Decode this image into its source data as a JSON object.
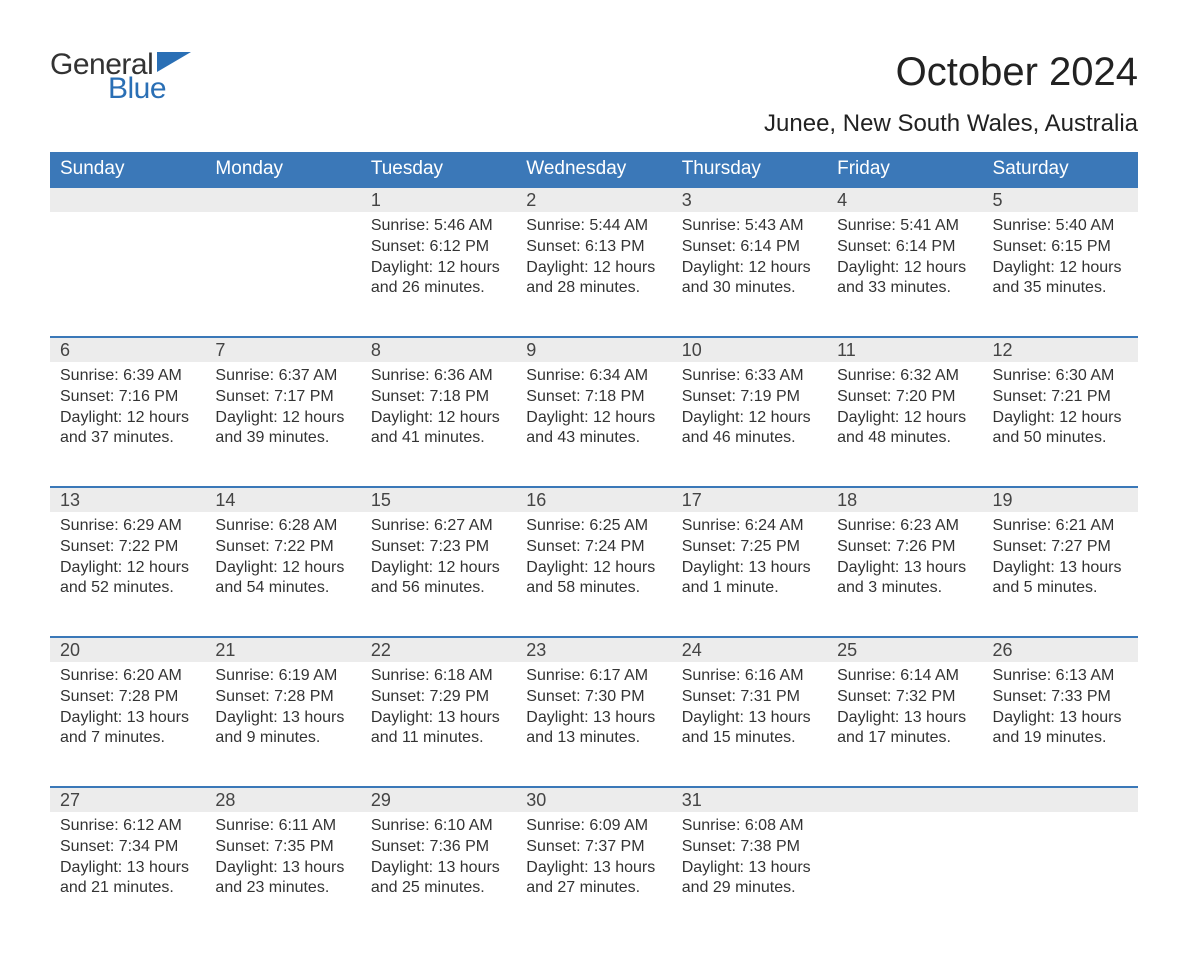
{
  "brand": {
    "word1": "General",
    "word2": "Blue"
  },
  "title": "October 2024",
  "subtitle": "Junee, New South Wales, Australia",
  "colors": {
    "header_bg": "#3b78b8",
    "header_text": "#ffffff",
    "daynum_bg": "#ececec",
    "daynum_border": "#3b78b8",
    "body_text": "#333333",
    "logo_blue": "#2a6fb5",
    "page_bg": "#ffffff"
  },
  "typography": {
    "title_fontsize": 40,
    "subtitle_fontsize": 24,
    "th_fontsize": 19,
    "daynum_fontsize": 18,
    "body_fontsize": 16
  },
  "layout": {
    "columns": 7,
    "weeks": 5,
    "first_day_column_index": 2
  },
  "weekdays": [
    "Sunday",
    "Monday",
    "Tuesday",
    "Wednesday",
    "Thursday",
    "Friday",
    "Saturday"
  ],
  "days": [
    {
      "n": 1,
      "sunrise": "5:46 AM",
      "sunset": "6:12 PM",
      "daylight": "12 hours and 26 minutes."
    },
    {
      "n": 2,
      "sunrise": "5:44 AM",
      "sunset": "6:13 PM",
      "daylight": "12 hours and 28 minutes."
    },
    {
      "n": 3,
      "sunrise": "5:43 AM",
      "sunset": "6:14 PM",
      "daylight": "12 hours and 30 minutes."
    },
    {
      "n": 4,
      "sunrise": "5:41 AM",
      "sunset": "6:14 PM",
      "daylight": "12 hours and 33 minutes."
    },
    {
      "n": 5,
      "sunrise": "5:40 AM",
      "sunset": "6:15 PM",
      "daylight": "12 hours and 35 minutes."
    },
    {
      "n": 6,
      "sunrise": "6:39 AM",
      "sunset": "7:16 PM",
      "daylight": "12 hours and 37 minutes."
    },
    {
      "n": 7,
      "sunrise": "6:37 AM",
      "sunset": "7:17 PM",
      "daylight": "12 hours and 39 minutes."
    },
    {
      "n": 8,
      "sunrise": "6:36 AM",
      "sunset": "7:18 PM",
      "daylight": "12 hours and 41 minutes."
    },
    {
      "n": 9,
      "sunrise": "6:34 AM",
      "sunset": "7:18 PM",
      "daylight": "12 hours and 43 minutes."
    },
    {
      "n": 10,
      "sunrise": "6:33 AM",
      "sunset": "7:19 PM",
      "daylight": "12 hours and 46 minutes."
    },
    {
      "n": 11,
      "sunrise": "6:32 AM",
      "sunset": "7:20 PM",
      "daylight": "12 hours and 48 minutes."
    },
    {
      "n": 12,
      "sunrise": "6:30 AM",
      "sunset": "7:21 PM",
      "daylight": "12 hours and 50 minutes."
    },
    {
      "n": 13,
      "sunrise": "6:29 AM",
      "sunset": "7:22 PM",
      "daylight": "12 hours and 52 minutes."
    },
    {
      "n": 14,
      "sunrise": "6:28 AM",
      "sunset": "7:22 PM",
      "daylight": "12 hours and 54 minutes."
    },
    {
      "n": 15,
      "sunrise": "6:27 AM",
      "sunset": "7:23 PM",
      "daylight": "12 hours and 56 minutes."
    },
    {
      "n": 16,
      "sunrise": "6:25 AM",
      "sunset": "7:24 PM",
      "daylight": "12 hours and 58 minutes."
    },
    {
      "n": 17,
      "sunrise": "6:24 AM",
      "sunset": "7:25 PM",
      "daylight": "13 hours and 1 minute."
    },
    {
      "n": 18,
      "sunrise": "6:23 AM",
      "sunset": "7:26 PM",
      "daylight": "13 hours and 3 minutes."
    },
    {
      "n": 19,
      "sunrise": "6:21 AM",
      "sunset": "7:27 PM",
      "daylight": "13 hours and 5 minutes."
    },
    {
      "n": 20,
      "sunrise": "6:20 AM",
      "sunset": "7:28 PM",
      "daylight": "13 hours and 7 minutes."
    },
    {
      "n": 21,
      "sunrise": "6:19 AM",
      "sunset": "7:28 PM",
      "daylight": "13 hours and 9 minutes."
    },
    {
      "n": 22,
      "sunrise": "6:18 AM",
      "sunset": "7:29 PM",
      "daylight": "13 hours and 11 minutes."
    },
    {
      "n": 23,
      "sunrise": "6:17 AM",
      "sunset": "7:30 PM",
      "daylight": "13 hours and 13 minutes."
    },
    {
      "n": 24,
      "sunrise": "6:16 AM",
      "sunset": "7:31 PM",
      "daylight": "13 hours and 15 minutes."
    },
    {
      "n": 25,
      "sunrise": "6:14 AM",
      "sunset": "7:32 PM",
      "daylight": "13 hours and 17 minutes."
    },
    {
      "n": 26,
      "sunrise": "6:13 AM",
      "sunset": "7:33 PM",
      "daylight": "13 hours and 19 minutes."
    },
    {
      "n": 27,
      "sunrise": "6:12 AM",
      "sunset": "7:34 PM",
      "daylight": "13 hours and 21 minutes."
    },
    {
      "n": 28,
      "sunrise": "6:11 AM",
      "sunset": "7:35 PM",
      "daylight": "13 hours and 23 minutes."
    },
    {
      "n": 29,
      "sunrise": "6:10 AM",
      "sunset": "7:36 PM",
      "daylight": "13 hours and 25 minutes."
    },
    {
      "n": 30,
      "sunrise": "6:09 AM",
      "sunset": "7:37 PM",
      "daylight": "13 hours and 27 minutes."
    },
    {
      "n": 31,
      "sunrise": "6:08 AM",
      "sunset": "7:38 PM",
      "daylight": "13 hours and 29 minutes."
    }
  ],
  "labels": {
    "sunrise": "Sunrise:",
    "sunset": "Sunset:",
    "daylight": "Daylight:"
  }
}
